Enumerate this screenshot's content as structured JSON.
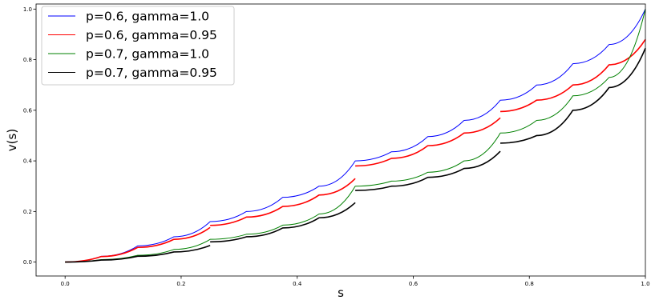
{
  "chart_data": {
    "type": "line",
    "title": "",
    "xlabel": "s",
    "ylabel": "v(s)",
    "xlim": [
      -0.05,
      1.0
    ],
    "ylim": [
      -0.055,
      1.02
    ],
    "xticks": [
      "0.0",
      "0.2",
      "0.4",
      "0.6",
      "0.8",
      "1.0"
    ],
    "yticks": [
      "0.0",
      "0.2",
      "0.4",
      "0.6",
      "0.8",
      "1.0"
    ],
    "grid": false,
    "legend_position": "top-left",
    "series": [
      {
        "name": "p=0.6, gamma=1.0",
        "color": "#0000ff",
        "points": [
          [
            0.0,
            0.0
          ],
          [
            0.0625,
            0.023
          ],
          [
            0.125,
            0.064
          ],
          [
            0.1875,
            0.1
          ],
          [
            0.25,
            0.16
          ],
          [
            0.3125,
            0.2
          ],
          [
            0.375,
            0.256
          ],
          [
            0.4375,
            0.3
          ],
          [
            0.5,
            0.4
          ],
          [
            0.5625,
            0.436
          ],
          [
            0.625,
            0.496
          ],
          [
            0.6875,
            0.56
          ],
          [
            0.75,
            0.64
          ],
          [
            0.8125,
            0.7
          ],
          [
            0.875,
            0.784
          ],
          [
            0.9375,
            0.86
          ],
          [
            1.0,
            1.0
          ]
        ]
      },
      {
        "name": "p=0.6, gamma=0.95",
        "color": "#ff0000",
        "segments": [
          [
            [
              0.0,
              0.0
            ],
            [
              0.0625,
              0.022
            ],
            [
              0.125,
              0.058
            ],
            [
              0.1875,
              0.09
            ],
            [
              0.25,
              0.137
            ]
          ],
          [
            [
              0.25,
              0.145
            ],
            [
              0.3125,
              0.178
            ],
            [
              0.375,
              0.22
            ],
            [
              0.4375,
              0.265
            ],
            [
              0.5,
              0.33
            ]
          ],
          [
            [
              0.5,
              0.38
            ],
            [
              0.5625,
              0.41
            ],
            [
              0.625,
              0.46
            ],
            [
              0.6875,
              0.51
            ],
            [
              0.75,
              0.57
            ]
          ],
          [
            [
              0.75,
              0.595
            ],
            [
              0.8125,
              0.64
            ],
            [
              0.875,
              0.7
            ],
            [
              0.9375,
              0.78
            ],
            [
              1.0,
              0.88
            ]
          ]
        ]
      },
      {
        "name": "p=0.7, gamma=1.0",
        "color": "#008000",
        "points": [
          [
            0.0,
            0.0
          ],
          [
            0.0625,
            0.01
          ],
          [
            0.125,
            0.027
          ],
          [
            0.1875,
            0.05
          ],
          [
            0.25,
            0.09
          ],
          [
            0.3125,
            0.11
          ],
          [
            0.375,
            0.146
          ],
          [
            0.4375,
            0.19
          ],
          [
            0.5,
            0.3
          ],
          [
            0.5625,
            0.32
          ],
          [
            0.625,
            0.355
          ],
          [
            0.6875,
            0.4
          ],
          [
            0.75,
            0.51
          ],
          [
            0.8125,
            0.56
          ],
          [
            0.875,
            0.657
          ],
          [
            0.9375,
            0.73
          ],
          [
            1.0,
            1.0
          ]
        ]
      },
      {
        "name": "p=0.7, gamma=0.95",
        "color": "#000000",
        "segments": [
          [
            [
              0.0,
              0.0
            ],
            [
              0.0625,
              0.008
            ],
            [
              0.125,
              0.023
            ],
            [
              0.1875,
              0.04
            ],
            [
              0.25,
              0.066
            ]
          ],
          [
            [
              0.25,
              0.08
            ],
            [
              0.3125,
              0.1
            ],
            [
              0.375,
              0.135
            ],
            [
              0.4375,
              0.175
            ],
            [
              0.5,
              0.235
            ]
          ],
          [
            [
              0.5,
              0.283
            ],
            [
              0.5625,
              0.3
            ],
            [
              0.625,
              0.335
            ],
            [
              0.6875,
              0.37
            ],
            [
              0.75,
              0.438
            ]
          ],
          [
            [
              0.75,
              0.47
            ],
            [
              0.8125,
              0.5
            ],
            [
              0.875,
              0.6
            ],
            [
              0.9375,
              0.69
            ],
            [
              1.0,
              0.845
            ]
          ]
        ]
      }
    ]
  }
}
